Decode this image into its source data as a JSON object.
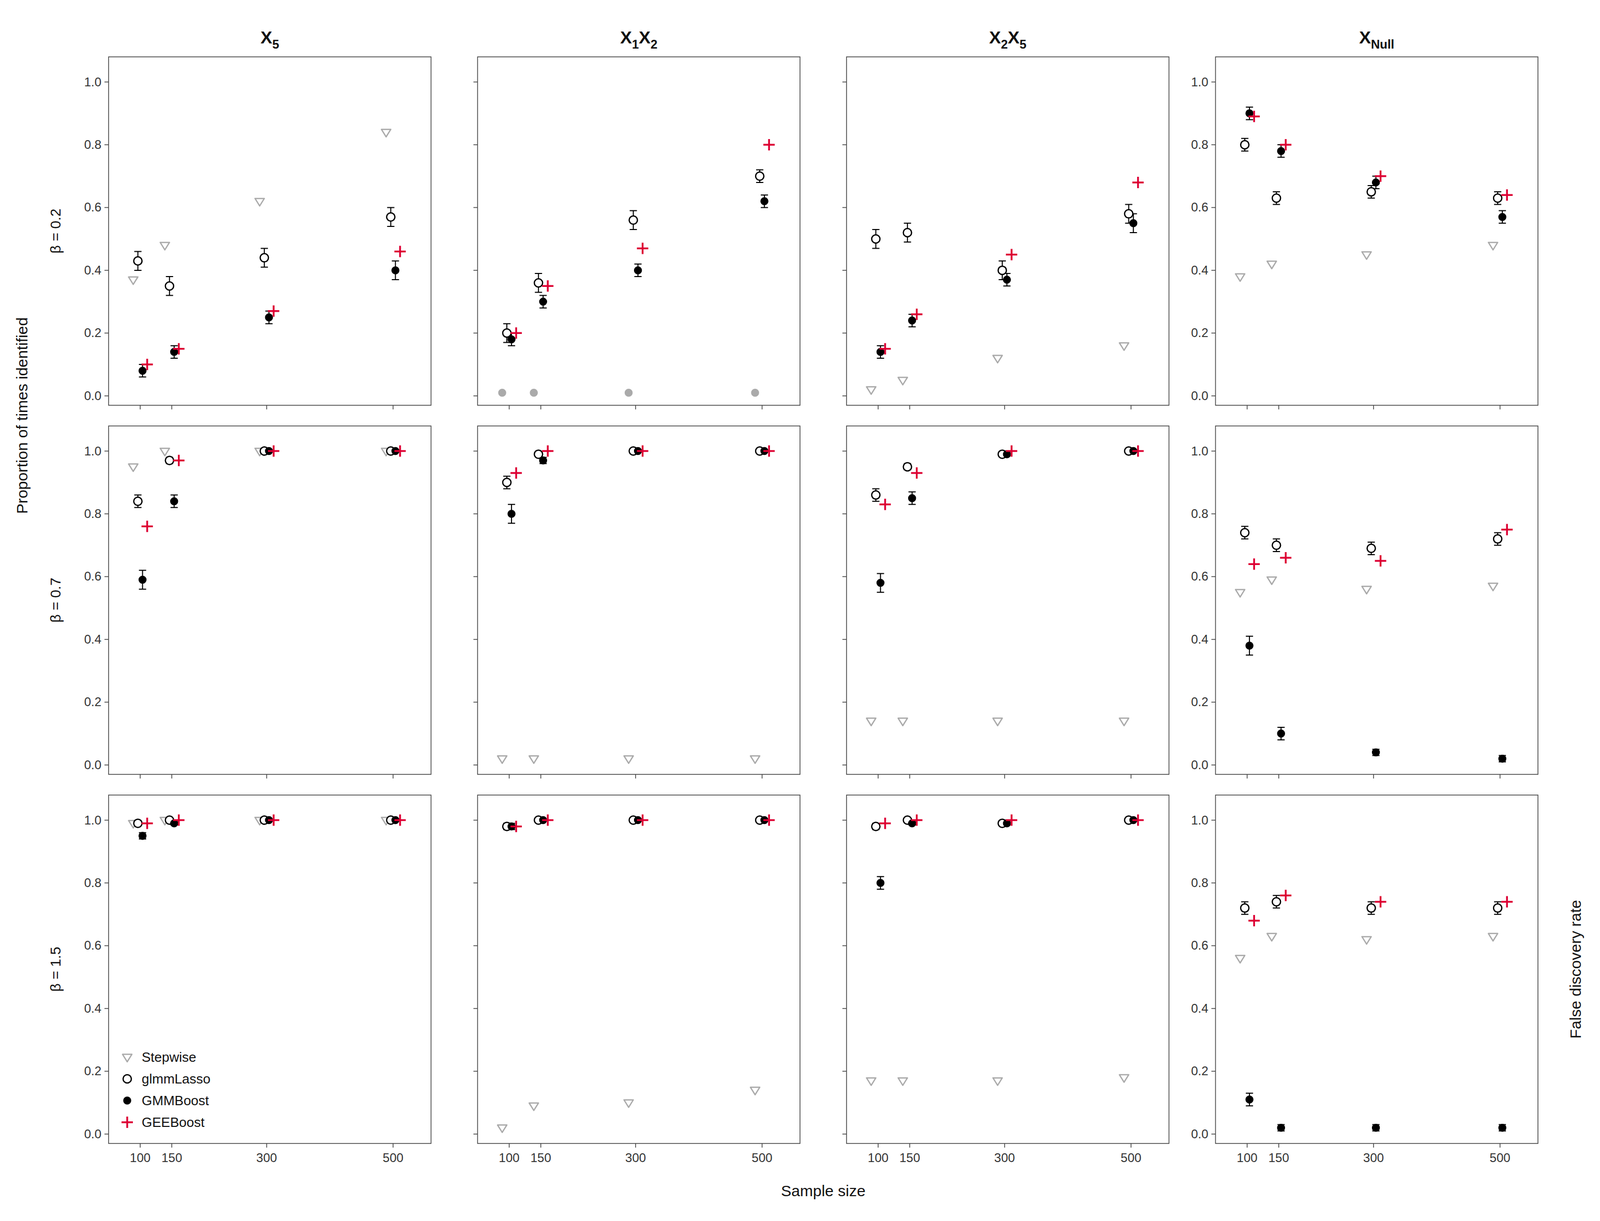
{
  "chart_data": [
    {
      "type": "scatter",
      "title": "X5",
      "ylabel": "β = 0.2",
      "annotations": [
        {
          "text": "Proportion of times identified"
        }
      ],
      "x": [
        100,
        150,
        300,
        500
      ],
      "xlim": [
        50,
        560
      ],
      "ylim": [
        -0.03,
        1.08
      ],
      "xticks": [
        100,
        150,
        300,
        500
      ],
      "yticks": [
        {
          "value": 0,
          "label": "0.0"
        },
        0.2,
        0.4,
        0.6,
        0.8,
        {
          "value": 1,
          "label": "1.0"
        }
      ],
      "tick_labels": "y",
      "grid": false,
      "series": [
        {
          "name": "Stepwise",
          "color": "#aaaaaa",
          "marker": "triangle-down-open",
          "values": [
            0.37,
            0.48,
            0.62,
            0.84
          ]
        },
        {
          "name": "glmmLasso",
          "color": "#000000",
          "marker": "circle-open",
          "values": [
            0.43,
            0.35,
            0.44,
            0.57
          ],
          "errors": [
            0.03,
            0.03,
            0.03,
            0.03
          ]
        },
        {
          "name": "GMMBoost",
          "color": "#000000",
          "marker": "circle",
          "values": [
            0.08,
            0.14,
            0.25,
            0.4
          ],
          "errors": [
            0.02,
            0.02,
            0.02,
            0.03
          ]
        },
        {
          "name": "GEEBoost",
          "color": "#dd0033",
          "marker": "plus",
          "values": [
            0.1,
            0.15,
            0.27,
            0.46
          ]
        }
      ]
    },
    {
      "type": "scatter",
      "title": "X1X2",
      "x": [
        100,
        150,
        300,
        500
      ],
      "xlim": [
        50,
        560
      ],
      "ylim": [
        -0.03,
        1.08
      ],
      "xticks": [
        100,
        150,
        300,
        500
      ],
      "yticks": [
        0,
        0.2,
        0.4,
        0.6,
        0.8,
        1
      ],
      "tick_labels": false,
      "grid": false,
      "series": [
        {
          "name": "Stepwise",
          "color": "#aaaaaa",
          "marker": "circle",
          "values": [
            0.01,
            0.01,
            0.01,
            0.01
          ]
        },
        {
          "name": "glmmLasso",
          "color": "#000000",
          "marker": "circle-open",
          "values": [
            0.2,
            0.36,
            0.56,
            0.7
          ],
          "errors": [
            0.03,
            0.03,
            0.03,
            0.02
          ]
        },
        {
          "name": "GMMBoost",
          "color": "#000000",
          "marker": "circle",
          "values": [
            0.18,
            0.3,
            0.4,
            0.62
          ],
          "errors": [
            0.02,
            0.02,
            0.02,
            0.02
          ]
        },
        {
          "name": "GEEBoost",
          "color": "#dd0033",
          "marker": "plus",
          "values": [
            0.2,
            0.35,
            0.47,
            0.8
          ]
        }
      ]
    },
    {
      "type": "scatter",
      "title": "X2X5",
      "x": [
        100,
        150,
        300,
        500
      ],
      "xlim": [
        50,
        560
      ],
      "ylim": [
        -0.03,
        1.08
      ],
      "xticks": [
        100,
        150,
        300,
        500
      ],
      "yticks": [
        0,
        0.2,
        0.4,
        0.6,
        0.8,
        1
      ],
      "tick_labels": false,
      "grid": false,
      "series": [
        {
          "name": "Stepwise",
          "color": "#aaaaaa",
          "marker": "triangle-down-open",
          "values": [
            0.02,
            0.05,
            0.12,
            0.16
          ]
        },
        {
          "name": "glmmLasso",
          "color": "#000000",
          "marker": "circle-open",
          "values": [
            0.5,
            0.52,
            0.4,
            0.58
          ],
          "errors": [
            0.03,
            0.03,
            0.03,
            0.03
          ]
        },
        {
          "name": "GMMBoost",
          "color": "#000000",
          "marker": "circle",
          "values": [
            0.14,
            0.24,
            0.37,
            0.55
          ],
          "errors": [
            0.02,
            0.02,
            0.02,
            0.03
          ]
        },
        {
          "name": "GEEBoost",
          "color": "#dd0033",
          "marker": "plus",
          "values": [
            0.15,
            0.26,
            0.45,
            0.68
          ]
        }
      ]
    },
    {
      "type": "scatter",
      "title": "XNull",
      "x": [
        100,
        150,
        300,
        500
      ],
      "xlim": [
        50,
        560
      ],
      "ylim": [
        -0.03,
        1.08
      ],
      "xticks": [
        100,
        150,
        300,
        500
      ],
      "yticks": [
        {
          "value": 0,
          "label": "0.0"
        },
        0.2,
        0.4,
        0.6,
        0.8,
        {
          "value": 1,
          "label": "1.0"
        }
      ],
      "tick_labels": "y",
      "grid": false,
      "series": [
        {
          "name": "Stepwise",
          "color": "#aaaaaa",
          "marker": "triangle-down-open",
          "values": [
            0.38,
            0.42,
            0.45,
            0.48
          ]
        },
        {
          "name": "glmmLasso",
          "color": "#000000",
          "marker": "circle-open",
          "values": [
            0.8,
            0.63,
            0.65,
            0.63
          ],
          "errors": [
            0.02,
            0.02,
            0.02,
            0.02
          ]
        },
        {
          "name": "GMMBoost",
          "color": "#000000",
          "marker": "circle",
          "values": [
            0.9,
            0.78,
            0.68,
            0.57
          ],
          "errors": [
            0.02,
            0.02,
            0.02,
            0.02
          ]
        },
        {
          "name": "GEEBoost",
          "color": "#dd0033",
          "marker": "plus",
          "values": [
            0.89,
            0.8,
            0.7,
            0.64
          ]
        }
      ]
    },
    {
      "type": "scatter",
      "ylabel": "β = 0.7",
      "x": [
        100,
        150,
        300,
        500
      ],
      "xlim": [
        50,
        560
      ],
      "ylim": [
        -0.03,
        1.08
      ],
      "xticks": [
        100,
        150,
        300,
        500
      ],
      "yticks": [
        {
          "value": 0,
          "label": "0.0"
        },
        0.2,
        0.4,
        0.6,
        0.8,
        {
          "value": 1,
          "label": "1.0"
        }
      ],
      "tick_labels": "y",
      "grid": false,
      "series": [
        {
          "name": "Stepwise",
          "color": "#aaaaaa",
          "marker": "triangle-down-open",
          "values": [
            0.95,
            1.0,
            1.0,
            1.0
          ]
        },
        {
          "name": "glmmLasso",
          "color": "#000000",
          "marker": "circle-open",
          "values": [
            0.84,
            0.97,
            1.0,
            1.0
          ],
          "errors": [
            0.02,
            0.01,
            0.005,
            0.0
          ]
        },
        {
          "name": "GMMBoost",
          "color": "#000000",
          "marker": "circle",
          "values": [
            0.59,
            0.84,
            1.0,
            1.0
          ],
          "errors": [
            0.03,
            0.02,
            0.0,
            0.0
          ]
        },
        {
          "name": "GEEBoost",
          "color": "#dd0033",
          "marker": "plus",
          "values": [
            0.76,
            0.97,
            1.0,
            1.0
          ]
        }
      ]
    },
    {
      "type": "scatter",
      "x": [
        100,
        150,
        300,
        500
      ],
      "xlim": [
        50,
        560
      ],
      "ylim": [
        -0.03,
        1.08
      ],
      "xticks": [
        100,
        150,
        300,
        500
      ],
      "yticks": [
        0,
        0.2,
        0.4,
        0.6,
        0.8,
        1
      ],
      "tick_labels": false,
      "grid": false,
      "series": [
        {
          "name": "Stepwise",
          "color": "#aaaaaa",
          "marker": "triangle-down-open",
          "values": [
            0.02,
            0.02,
            0.02,
            0.02
          ]
        },
        {
          "name": "glmmLasso",
          "color": "#000000",
          "marker": "circle-open",
          "values": [
            0.9,
            0.99,
            1.0,
            1.0
          ],
          "errors": [
            0.02,
            0.005,
            0.0,
            0.0
          ]
        },
        {
          "name": "GMMBoost",
          "color": "#000000",
          "marker": "circle",
          "values": [
            0.8,
            0.97,
            1.0,
            1.0
          ],
          "errors": [
            0.03,
            0.01,
            0.0,
            0.0
          ]
        },
        {
          "name": "GEEBoost",
          "color": "#dd0033",
          "marker": "plus",
          "values": [
            0.93,
            1.0,
            1.0,
            1.0
          ]
        }
      ]
    },
    {
      "type": "scatter",
      "x": [
        100,
        150,
        300,
        500
      ],
      "xlim": [
        50,
        560
      ],
      "ylim": [
        -0.03,
        1.08
      ],
      "xticks": [
        100,
        150,
        300,
        500
      ],
      "yticks": [
        0,
        0.2,
        0.4,
        0.6,
        0.8,
        1
      ],
      "tick_labels": false,
      "grid": false,
      "series": [
        {
          "name": "Stepwise",
          "color": "#aaaaaa",
          "marker": "triangle-down-open",
          "values": [
            0.14,
            0.14,
            0.14,
            0.14
          ]
        },
        {
          "name": "glmmLasso",
          "color": "#000000",
          "marker": "circle-open",
          "values": [
            0.86,
            0.95,
            0.99,
            1.0
          ],
          "errors": [
            0.02,
            0.01,
            0.005,
            0.0
          ]
        },
        {
          "name": "GMMBoost",
          "color": "#000000",
          "marker": "circle",
          "values": [
            0.58,
            0.85,
            0.99,
            1.0
          ],
          "errors": [
            0.03,
            0.02,
            0.005,
            0.0
          ]
        },
        {
          "name": "GEEBoost",
          "color": "#dd0033",
          "marker": "plus",
          "values": [
            0.83,
            0.93,
            1.0,
            1.0
          ]
        }
      ]
    },
    {
      "type": "scatter",
      "x": [
        100,
        150,
        300,
        500
      ],
      "xlim": [
        50,
        560
      ],
      "ylim": [
        -0.03,
        1.08
      ],
      "xticks": [
        100,
        150,
        300,
        500
      ],
      "yticks": [
        {
          "value": 0,
          "label": "0.0"
        },
        0.2,
        0.4,
        0.6,
        0.8,
        {
          "value": 1,
          "label": "1.0"
        }
      ],
      "tick_labels": "y",
      "grid": false,
      "series": [
        {
          "name": "Stepwise",
          "color": "#aaaaaa",
          "marker": "triangle-down-open",
          "values": [
            0.55,
            0.59,
            0.56,
            0.57
          ]
        },
        {
          "name": "glmmLasso",
          "color": "#000000",
          "marker": "circle-open",
          "values": [
            0.74,
            0.7,
            0.69,
            0.72
          ],
          "errors": [
            0.02,
            0.02,
            0.02,
            0.02
          ]
        },
        {
          "name": "GMMBoost",
          "color": "#000000",
          "marker": "circle",
          "values": [
            0.38,
            0.1,
            0.04,
            0.02
          ],
          "errors": [
            0.03,
            0.02,
            0.01,
            0.01
          ]
        },
        {
          "name": "GEEBoost",
          "color": "#dd0033",
          "marker": "plus",
          "values": [
            0.64,
            0.66,
            0.65,
            0.75
          ]
        }
      ]
    },
    {
      "type": "scatter",
      "ylabel": "β = 1.5",
      "legend": "lower left",
      "x": [
        100,
        150,
        300,
        500
      ],
      "xlim": [
        50,
        560
      ],
      "ylim": [
        -0.03,
        1.08
      ],
      "xticks": [
        100,
        150,
        300,
        500
      ],
      "yticks": [
        {
          "value": 0,
          "label": "0.0"
        },
        0.2,
        0.4,
        0.6,
        0.8,
        {
          "value": 1,
          "label": "1.0"
        }
      ],
      "grid": false,
      "series": [
        {
          "name": "Stepwise",
          "color": "#aaaaaa",
          "marker": "triangle-down-open",
          "values": [
            0.99,
            1.0,
            1.0,
            1.0
          ]
        },
        {
          "name": "glmmLasso",
          "color": "#000000",
          "marker": "circle-open",
          "values": [
            0.99,
            1.0,
            1.0,
            1.0
          ],
          "errors": [
            0.005,
            0.0,
            0.0,
            0.0
          ]
        },
        {
          "name": "GMMBoost",
          "color": "#000000",
          "marker": "circle",
          "values": [
            0.95,
            0.99,
            1.0,
            1.0
          ],
          "errors": [
            0.01,
            0.005,
            0.0,
            0.0
          ]
        },
        {
          "name": "GEEBoost",
          "color": "#dd0033",
          "marker": "plus",
          "values": [
            0.99,
            1.0,
            1.0,
            1.0
          ]
        }
      ]
    },
    {
      "type": "scatter",
      "annotations": [
        {
          "text": "Sample size"
        }
      ],
      "x": [
        100,
        150,
        300,
        500
      ],
      "xlim": [
        50,
        560
      ],
      "ylim": [
        -0.03,
        1.08
      ],
      "xticks": [
        100,
        150,
        300,
        500
      ],
      "yticks": [
        0,
        0.2,
        0.4,
        0.6,
        0.8,
        1
      ],
      "tick_labels": "x",
      "grid": false,
      "series": [
        {
          "name": "Stepwise",
          "color": "#aaaaaa",
          "marker": "triangle-down-open",
          "values": [
            0.02,
            0.09,
            0.1,
            0.14
          ]
        },
        {
          "name": "glmmLasso",
          "color": "#000000",
          "marker": "circle-open",
          "values": [
            0.98,
            1.0,
            1.0,
            1.0
          ],
          "errors": [
            0.01,
            0.0,
            0.0,
            0.0
          ]
        },
        {
          "name": "GMMBoost",
          "color": "#000000",
          "marker": "circle",
          "values": [
            0.98,
            1.0,
            1.0,
            1.0
          ],
          "errors": [
            0.01,
            0.0,
            0.0,
            0.0
          ]
        },
        {
          "name": "GEEBoost",
          "color": "#dd0033",
          "marker": "plus",
          "values": [
            0.98,
            1.0,
            1.0,
            1.0
          ]
        }
      ]
    },
    {
      "type": "scatter",
      "x": [
        100,
        150,
        300,
        500
      ],
      "xlim": [
        50,
        560
      ],
      "ylim": [
        -0.03,
        1.08
      ],
      "xticks": [
        100,
        150,
        300,
        500
      ],
      "yticks": [
        0,
        0.2,
        0.4,
        0.6,
        0.8,
        1
      ],
      "tick_labels": "x",
      "grid": false,
      "series": [
        {
          "name": "Stepwise",
          "color": "#aaaaaa",
          "marker": "triangle-down-open",
          "values": [
            0.17,
            0.17,
            0.17,
            0.18
          ]
        },
        {
          "name": "glmmLasso",
          "color": "#000000",
          "marker": "circle-open",
          "values": [
            0.98,
            1.0,
            0.99,
            1.0
          ],
          "errors": [
            0.01,
            0.0,
            0.005,
            0.0
          ]
        },
        {
          "name": "GMMBoost",
          "color": "#000000",
          "marker": "circle",
          "values": [
            0.8,
            0.99,
            0.99,
            1.0
          ],
          "errors": [
            0.02,
            0.005,
            0.005,
            0.0
          ]
        },
        {
          "name": "GEEBoost",
          "color": "#dd0033",
          "marker": "plus",
          "values": [
            0.99,
            1.0,
            1.0,
            1.0
          ]
        }
      ]
    },
    {
      "type": "scatter",
      "annotations": [
        {
          "text": "False discovery rate"
        }
      ],
      "x": [
        100,
        150,
        300,
        500
      ],
      "xlim": [
        50,
        560
      ],
      "ylim": [
        -0.03,
        1.08
      ],
      "xticks": [
        100,
        150,
        300,
        500
      ],
      "yticks": [
        {
          "value": 0,
          "label": "0.0"
        },
        0.2,
        0.4,
        0.6,
        0.8,
        {
          "value": 1,
          "label": "1.0"
        }
      ],
      "grid": false,
      "series": [
        {
          "name": "Stepwise",
          "color": "#aaaaaa",
          "marker": "triangle-down-open",
          "values": [
            0.56,
            0.63,
            0.62,
            0.63
          ]
        },
        {
          "name": "glmmLasso",
          "color": "#000000",
          "marker": "circle-open",
          "values": [
            0.72,
            0.74,
            0.72,
            0.72
          ],
          "errors": [
            0.02,
            0.02,
            0.02,
            0.02
          ]
        },
        {
          "name": "GMMBoost",
          "color": "#000000",
          "marker": "circle",
          "values": [
            0.11,
            0.02,
            0.02,
            0.02
          ],
          "errors": [
            0.02,
            0.01,
            0.01,
            0.01
          ]
        },
        {
          "name": "GEEBoost",
          "color": "#dd0033",
          "marker": "plus",
          "values": [
            0.68,
            0.76,
            0.74,
            0.74
          ]
        }
      ]
    }
  ]
}
